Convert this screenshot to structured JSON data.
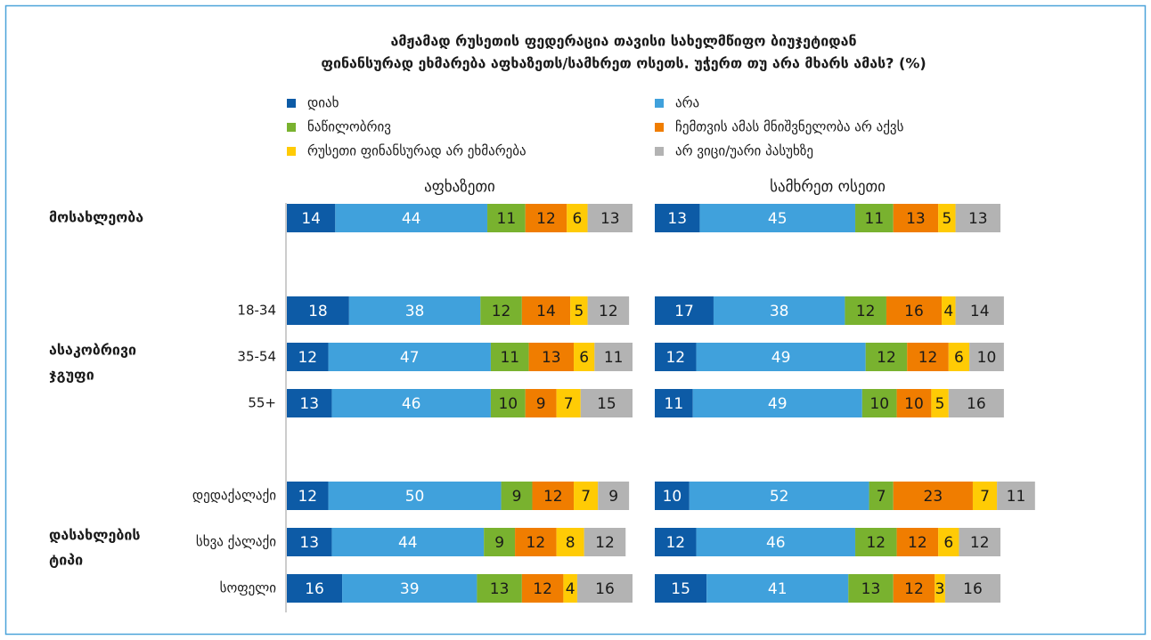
{
  "chart_data": {
    "type": "bar",
    "orientation": "horizontal",
    "stacked": true,
    "title": [
      "ამჟამად რუსეთის ფედერაცია თავისი სახელმწიფო ბიუჯეტიდან",
      "ფინანსურად ეხმარება აფხაზეთს/სამხრეთ ოსეთს. უჭერთ თუ არა მხარს ამას? (%)"
    ],
    "xlim": [
      0,
      100
    ],
    "categories": [
      null,
      "18-34",
      "35-54",
      "55+",
      "დედაქალაქი",
      "სხვა ქალაქი",
      "სოფელი"
    ],
    "groups": [
      {
        "label": [
          "მოსახლეობა"
        ],
        "size": 1
      },
      {
        "label": [
          "ასაკობრივი",
          "ჯგუფი"
        ],
        "size": 3
      },
      {
        "label": [
          "დასახლების",
          "ტიპი"
        ],
        "size": 3
      }
    ],
    "panels": [
      "აფხაზეთი",
      "სამხრეთ ოსეთი"
    ],
    "series": [
      {
        "name": "დიახ",
        "color": "#0d5ba6",
        "values": [
          [
            14,
            18,
            12,
            13,
            12,
            13,
            16
          ],
          [
            13,
            17,
            12,
            11,
            10,
            12,
            15
          ]
        ]
      },
      {
        "name": "არა",
        "color": "#40a1dc",
        "values": [
          [
            44,
            38,
            47,
            46,
            50,
            44,
            39
          ],
          [
            45,
            38,
            49,
            49,
            52,
            46,
            41
          ]
        ]
      },
      {
        "name": "ნაწილობრივ",
        "color": "#79b22f",
        "values": [
          [
            11,
            12,
            11,
            10,
            9,
            9,
            13
          ],
          [
            11,
            12,
            12,
            10,
            7,
            12,
            13
          ]
        ]
      },
      {
        "name": "ჩემთვის ამას მნიშვნელობა არ აქვს",
        "color": "#f07d00",
        "values": [
          [
            12,
            14,
            13,
            9,
            12,
            12,
            12
          ],
          [
            13,
            16,
            12,
            10,
            23,
            12,
            12
          ]
        ]
      },
      {
        "name": "რუსეთი ფინანსურად არ ეხმარება",
        "color": "#ffcb05",
        "values": [
          [
            6,
            5,
            6,
            7,
            7,
            8,
            4
          ],
          [
            5,
            4,
            6,
            5,
            7,
            6,
            3
          ]
        ]
      },
      {
        "name": "არ ვიცი/უარი პასუხზე",
        "color": "#b3b3b3",
        "values": [
          [
            13,
            12,
            11,
            15,
            9,
            12,
            16
          ],
          [
            13,
            14,
            10,
            16,
            11,
            12,
            16
          ]
        ]
      }
    ]
  }
}
